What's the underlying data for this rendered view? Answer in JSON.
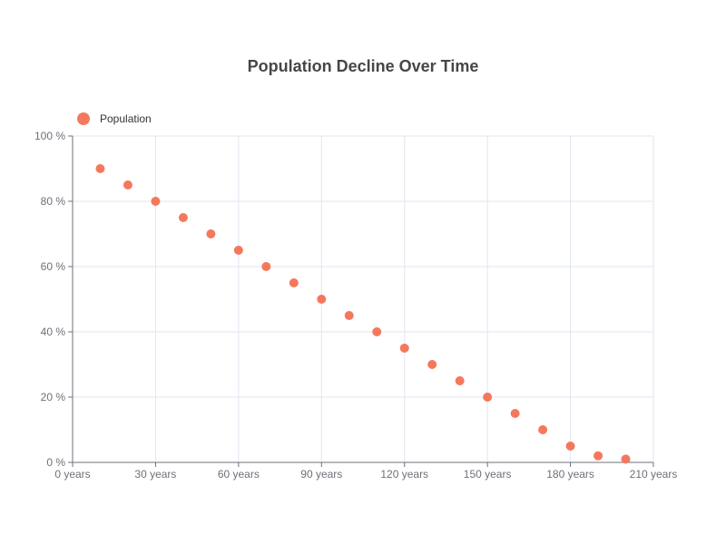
{
  "chart_data": {
    "type": "scatter",
    "title": "Population Decline Over Time",
    "legend": {
      "position": "top-left",
      "items": [
        "Population"
      ]
    },
    "colors": {
      "series": "#f5785d",
      "grid": "#e0e6f1",
      "axis": "#6e7079",
      "title": "#464646"
    },
    "x_axis": {
      "min": 0,
      "max": 210,
      "interval": 30,
      "tick_labels": [
        "0 years",
        "30 years",
        "60 years",
        "90 years",
        "120 years",
        "150 years",
        "180 years",
        "210 years"
      ]
    },
    "y_axis": {
      "min": 0,
      "max": 100,
      "interval": 20,
      "tick_labels": [
        "0 %",
        "20 %",
        "40 %",
        "60 %",
        "80 %",
        "100 %"
      ]
    },
    "grid": true,
    "series": [
      {
        "name": "Population",
        "points": [
          [
            10,
            90
          ],
          [
            20,
            85
          ],
          [
            30,
            80
          ],
          [
            40,
            75
          ],
          [
            50,
            70
          ],
          [
            60,
            65
          ],
          [
            70,
            60
          ],
          [
            80,
            55
          ],
          [
            90,
            50
          ],
          [
            100,
            45
          ],
          [
            110,
            40
          ],
          [
            120,
            35
          ],
          [
            130,
            30
          ],
          [
            140,
            25
          ],
          [
            150,
            20
          ],
          [
            160,
            15
          ],
          [
            170,
            10
          ],
          [
            180,
            5
          ],
          [
            190,
            2
          ],
          [
            200,
            1
          ]
        ]
      }
    ]
  }
}
